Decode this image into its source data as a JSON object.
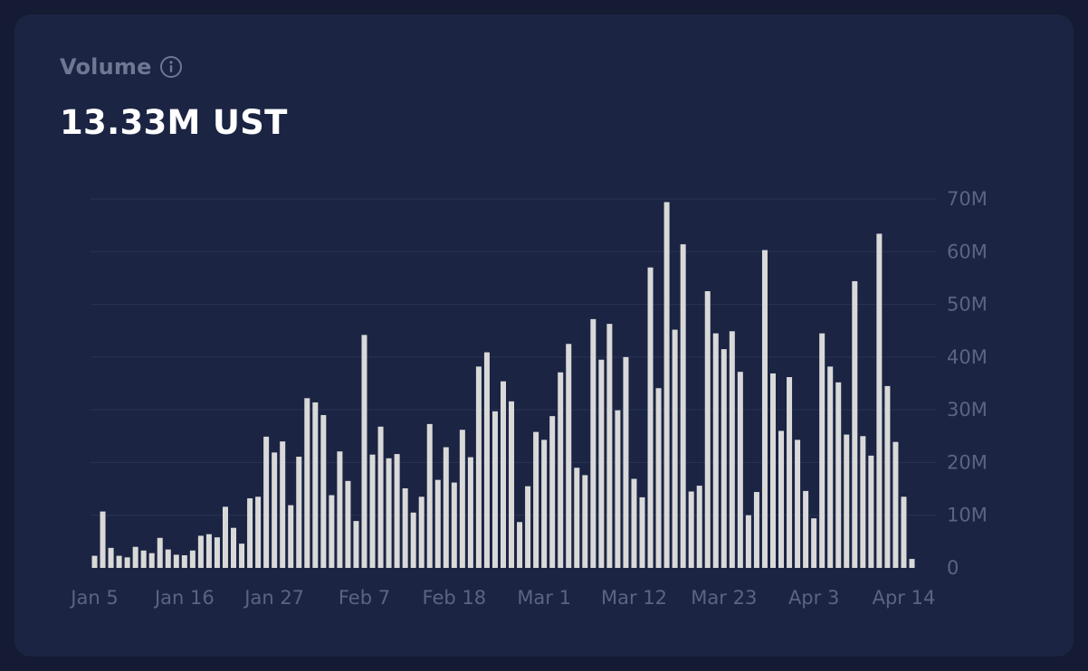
{
  "card": {
    "title": "Volume",
    "title_icon": "info-icon",
    "value": "13.33M UST"
  },
  "colors": {
    "background": "#141b33",
    "card": "#1b2442",
    "bar": "#d9d9d9",
    "grid": "#2a3354",
    "tick": "#5c6482",
    "title": "#6f7793"
  },
  "chart_data": {
    "type": "bar",
    "title": "",
    "xlabel": "",
    "ylabel": "",
    "ylim": [
      0,
      70
    ],
    "y_unit": "M",
    "y_ticks": [
      0,
      10,
      20,
      30,
      40,
      50,
      60,
      70
    ],
    "y_tick_labels": [
      "0",
      "10M",
      "20M",
      "30M",
      "40M",
      "50M",
      "60M",
      "70M"
    ],
    "x_tick_labels": [
      {
        "index": 0,
        "label": "Jan 5"
      },
      {
        "index": 11,
        "label": "Jan 16"
      },
      {
        "index": 22,
        "label": "Jan 27"
      },
      {
        "index": 33,
        "label": "Feb 7"
      },
      {
        "index": 44,
        "label": "Feb 18"
      },
      {
        "index": 55,
        "label": "Mar 1"
      },
      {
        "index": 66,
        "label": "Mar 12"
      },
      {
        "index": 77,
        "label": "Mar 23"
      },
      {
        "index": 88,
        "label": "Apr 3"
      },
      {
        "index": 99,
        "label": "Apr 14"
      }
    ],
    "grid": true,
    "values": [
      2.3,
      10.7,
      3.8,
      2.3,
      2.0,
      4.0,
      3.3,
      2.8,
      5.7,
      3.5,
      2.5,
      2.4,
      3.3,
      6.1,
      6.4,
      5.8,
      11.6,
      7.6,
      4.6,
      13.2,
      13.5,
      24.9,
      21.9,
      24.0,
      11.9,
      21.1,
      32.2,
      31.4,
      29.0,
      13.8,
      22.1,
      16.5,
      8.9,
      44.2,
      21.5,
      26.8,
      20.8,
      21.6,
      15.1,
      10.5,
      13.5,
      27.3,
      16.7,
      22.9,
      16.2,
      26.2,
      21.0,
      38.2,
      40.9,
      29.7,
      35.4,
      31.6,
      8.7,
      15.5,
      25.8,
      24.3,
      28.8,
      37.1,
      42.5,
      19.0,
      17.6,
      47.2,
      39.5,
      46.3,
      29.9,
      40.0,
      16.9,
      13.4,
      57.0,
      34.1,
      69.4,
      45.2,
      61.4,
      14.5,
      15.6,
      52.5,
      44.5,
      41.5,
      44.9,
      37.2,
      10.0,
      14.4,
      60.3,
      36.9,
      26.0,
      36.2,
      24.3,
      14.6,
      9.4,
      44.5,
      38.2,
      35.2,
      25.3,
      54.4,
      25.0,
      21.3,
      63.4,
      34.5,
      23.9,
      13.5,
      1.7
    ]
  }
}
